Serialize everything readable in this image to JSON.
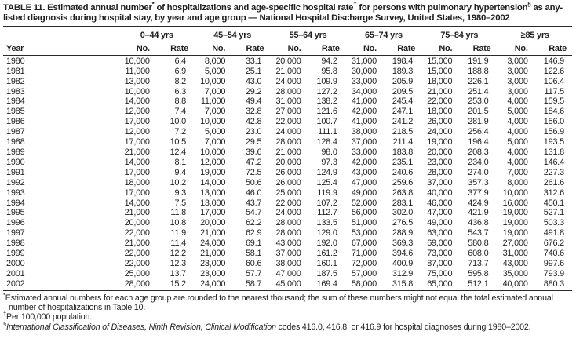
{
  "title": {
    "parts": [
      {
        "text": "TABLE 11. Estimated annual number"
      },
      {
        "sup": "*"
      },
      {
        "text": " of hospitalizations and age-specific hospital rate"
      },
      {
        "sup": "†"
      },
      {
        "text": " for persons with pulmonary hypertension"
      },
      {
        "sup": "§"
      },
      {
        "text": " as any-listed diagnosis during hospital stay, by year and age group — National Hospital Discharge Survey, United States, 1980–2002"
      }
    ]
  },
  "table": {
    "year_label": "Year",
    "no_label": "No.",
    "rate_label": "Rate",
    "groups": [
      "0–44 yrs",
      "45–54 yrs",
      "55–64 yrs",
      "65–74 yrs",
      "75–84 yrs",
      "≥85 yrs"
    ],
    "rows": [
      {
        "year": "1980",
        "cells": [
          "10,000",
          "6.4",
          "8,000",
          "33.1",
          "20,000",
          "94.2",
          "31,000",
          "198.4",
          "15,000",
          "191.9",
          "3,000",
          "146.9"
        ]
      },
      {
        "year": "1981",
        "cells": [
          "11,000",
          "6.9",
          "5,000",
          "25.1",
          "21,000",
          "95.8",
          "30,000",
          "189.3",
          "15,000",
          "188.8",
          "3,000",
          "122.6"
        ]
      },
      {
        "year": "1982",
        "cells": [
          "13,000",
          "8.2",
          "10,000",
          "43.0",
          "24,000",
          "109.9",
          "33,000",
          "205.9",
          "18,000",
          "226.1",
          "3,000",
          "106.4"
        ]
      },
      {
        "year": "1983",
        "cells": [
          "10,000",
          "6.3",
          "7,000",
          "29.2",
          "28,000",
          "127.2",
          "34,000",
          "209.5",
          "21,000",
          "251.4",
          "3,000",
          "117.5"
        ]
      },
      {
        "year": "1984",
        "cells": [
          "14,000",
          "8.8",
          "11,000",
          "49.4",
          "31,000",
          "138.2",
          "41,000",
          "245.4",
          "22,000",
          "253.0",
          "4,000",
          "159.5"
        ]
      },
      {
        "year": "1985",
        "cells": [
          "12,000",
          "7.4",
          "7,000",
          "32.8",
          "27,000",
          "121.6",
          "42,000",
          "247.1",
          "18,000",
          "201.5",
          "5,000",
          "184.6"
        ]
      },
      {
        "year": "1986",
        "cells": [
          "17,000",
          "10.0",
          "10,000",
          "42.8",
          "22,000",
          "100.7",
          "41,000",
          "241.2",
          "26,000",
          "281.9",
          "4,000",
          "156.0"
        ]
      },
      {
        "year": "1987",
        "cells": [
          "12,000",
          "7.2",
          "5,000",
          "23.0",
          "24,000",
          "111.1",
          "38,000",
          "218.5",
          "24,000",
          "256.4",
          "4,000",
          "156.9"
        ]
      },
      {
        "year": "1988",
        "cells": [
          "17,000",
          "10.5",
          "7,000",
          "29.5",
          "28,000",
          "128.4",
          "37,000",
          "211.4",
          "19,000",
          "196.4",
          "5,000",
          "193.5"
        ]
      },
      {
        "year": "1989",
        "cells": [
          "21,000",
          "12.4",
          "10,000",
          "39.6",
          "21,000",
          "98.0",
          "33,000",
          "183.8",
          "20,000",
          "208.3",
          "4,000",
          "131.8"
        ]
      },
      {
        "year": "1990",
        "cells": [
          "14,000",
          "8.1",
          "12,000",
          "47.2",
          "20,000",
          "97.3",
          "42,000",
          "235.1",
          "23,000",
          "234.0",
          "4,000",
          "146.4"
        ]
      },
      {
        "year": "1991",
        "cells": [
          "17,000",
          "9.4",
          "19,000",
          "72.5",
          "26,000",
          "124.9",
          "43,000",
          "240.6",
          "28,000",
          "274.0",
          "7,000",
          "227.3"
        ]
      },
      {
        "year": "1992",
        "cells": [
          "18,000",
          "10.2",
          "14,000",
          "50.6",
          "26,000",
          "125.4",
          "47,000",
          "259.6",
          "37,000",
          "357.3",
          "8,000",
          "261.6"
        ]
      },
      {
        "year": "1993",
        "cells": [
          "17,000",
          "9.3",
          "13,000",
          "46.0",
          "25,000",
          "119.9",
          "49,000",
          "263.8",
          "40,000",
          "377.9",
          "10,000",
          "312.6"
        ]
      },
      {
        "year": "1994",
        "cells": [
          "14,000",
          "7.5",
          "13,000",
          "43.7",
          "22,000",
          "107.2",
          "52,000",
          "283.1",
          "46,000",
          "424.9",
          "16,000",
          "450.1"
        ]
      },
      {
        "year": "1995",
        "cells": [
          "21,000",
          "11.8",
          "17,000",
          "54.7",
          "24,000",
          "112.7",
          "56,000",
          "302.0",
          "47,000",
          "421.9",
          "19,000",
          "527.1"
        ]
      },
      {
        "year": "1996",
        "cells": [
          "20,000",
          "10.8",
          "20,000",
          "62.2",
          "28,000",
          "133.5",
          "51,000",
          "276.5",
          "49,000",
          "436.8",
          "19,000",
          "503.3"
        ]
      },
      {
        "year": "1997",
        "cells": [
          "22,000",
          "11.9",
          "21,000",
          "62.9",
          "28,000",
          "129.0",
          "53,000",
          "288.9",
          "63,000",
          "543.7",
          "19,000",
          "491.8"
        ]
      },
      {
        "year": "1998",
        "cells": [
          "21,000",
          "11.4",
          "24,000",
          "69.1",
          "43,000",
          "192.0",
          "67,000",
          "369.3",
          "69,000",
          "580.8",
          "27,000",
          "676.2"
        ]
      },
      {
        "year": "1999",
        "cells": [
          "22,000",
          "12.2",
          "21,000",
          "58.1",
          "37,000",
          "161.2",
          "71,000",
          "394.6",
          "73,000",
          "608.0",
          "31,000",
          "740.6"
        ]
      },
      {
        "year": "2000",
        "cells": [
          "22,000",
          "12.3",
          "23,000",
          "60.6",
          "38,000",
          "160.1",
          "72,000",
          "400.9",
          "87,000",
          "713.7",
          "43,000",
          "997.6"
        ]
      },
      {
        "year": "2001",
        "cells": [
          "25,000",
          "13.7",
          "23,000",
          "57.7",
          "47,000",
          "187.5",
          "57,000",
          "312.9",
          "75,000",
          "595.8",
          "35,000",
          "793.9"
        ]
      },
      {
        "year": "2002",
        "cells": [
          "28,000",
          "15.2",
          "24,000",
          "58.7",
          "45,000",
          "169.4",
          "58,000",
          "315.8",
          "65,000",
          "512.1",
          "40,000",
          "880.3"
        ]
      }
    ]
  },
  "footnotes": [
    {
      "marker": "*",
      "italic": "",
      "text": "Estimated annual numbers for each age group are rounded to the nearest thousand; the sum of these numbers might not equal the total estimated annual number of hospitalizations in Table 10."
    },
    {
      "marker": "†",
      "italic": "",
      "text": "Per 100,000 population."
    },
    {
      "marker": "§",
      "italic": "International Classification of Diseases, Ninth Revision, Clinical Modification",
      "text": " codes 416.0, 416.8, or 416.9 for hospital diagnoses during 1980–2002."
    }
  ]
}
